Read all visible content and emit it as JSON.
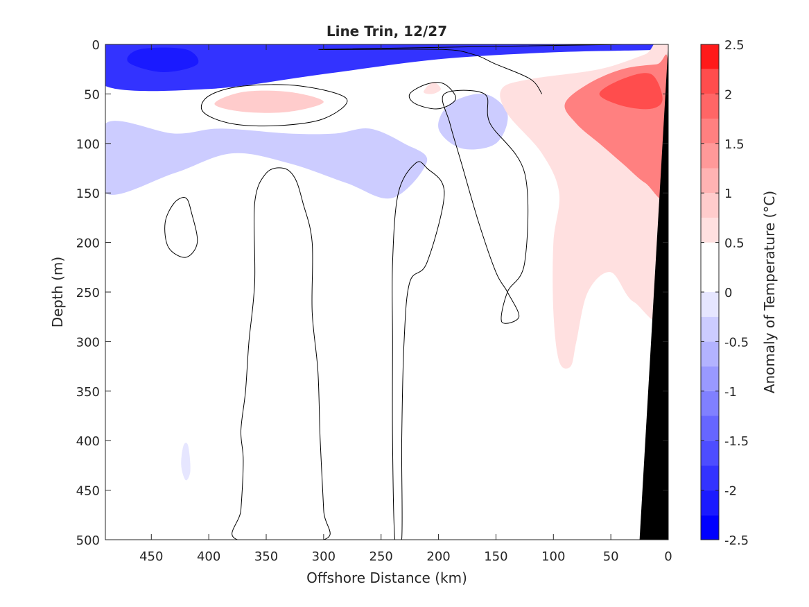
{
  "chart_data": {
    "type": "heatmap",
    "title": "Line Trin, 12/27",
    "xlabel": "Offshore Distance (km)",
    "ylabel": "Depth (m)",
    "colorbar_label": "Anomaly of Temperature (°C)",
    "xlim": [
      490,
      0
    ],
    "ylim": [
      0,
      500
    ],
    "x_reversed": true,
    "y_reversed": true,
    "x_ticks": [
      450,
      400,
      350,
      300,
      250,
      200,
      150,
      100,
      50,
      0
    ],
    "y_ticks": [
      0,
      50,
      100,
      150,
      200,
      250,
      300,
      350,
      400,
      450,
      500
    ],
    "colorbar": {
      "range": [
        -2.5,
        2.5
      ],
      "levels": [
        -2.5,
        -2.25,
        -2.0,
        -1.75,
        -1.5,
        -1.25,
        -1.0,
        -0.75,
        -0.5,
        -0.25,
        0.0,
        0.25,
        0.5,
        0.75,
        1.0,
        1.25,
        1.5,
        1.75,
        2.0,
        2.25,
        2.5
      ],
      "tick_values": [
        -2.5,
        -2,
        -1.5,
        -1,
        -0.5,
        0,
        0.5,
        1,
        1.5,
        2,
        2.5
      ],
      "tick_labels": [
        "-2.5",
        "-2",
        "-1.5",
        "-1",
        "-0.5",
        "0",
        "0.5",
        "1",
        "1.5",
        "2",
        "2.5"
      ],
      "colors": [
        "#0000ff",
        "#1a1aff",
        "#3333ff",
        "#4d4dff",
        "#6666ff",
        "#8080ff",
        "#9999ff",
        "#b3b3ff",
        "#ccccff",
        "#e6e6ff",
        "#ffffff",
        "#ffffff",
        "#ffe0e0",
        "#ffcccc",
        "#ffb3b3",
        "#ff9999",
        "#ff8080",
        "#ff6666",
        "#ff4d4d",
        "#ff1a1a"
      ]
    },
    "anomaly_fields": [
      {
        "feature": "surface cold layer",
        "value": -2.0,
        "points": [
          [
            490,
            0
          ],
          [
            0,
            0
          ],
          [
            0,
            5
          ],
          [
            100,
            8
          ],
          [
            200,
            15
          ],
          [
            300,
            30
          ],
          [
            400,
            45
          ],
          [
            490,
            42
          ]
        ]
      },
      {
        "feature": "surface core",
        "value": -2.25,
        "points": [
          [
            460,
            5
          ],
          [
            420,
            5
          ],
          [
            410,
            20
          ],
          [
            440,
            28
          ],
          [
            470,
            18
          ]
        ]
      },
      {
        "feature": "subsurface cold band",
        "value": -0.5,
        "points": [
          [
            490,
            80
          ],
          [
            430,
            90
          ],
          [
            390,
            85
          ],
          [
            330,
            90
          ],
          [
            290,
            90
          ],
          [
            260,
            85
          ],
          [
            230,
            100
          ],
          [
            210,
            118
          ],
          [
            240,
            155
          ],
          [
            280,
            140
          ],
          [
            330,
            120
          ],
          [
            380,
            110
          ],
          [
            430,
            130
          ],
          [
            490,
            150
          ]
        ]
      },
      {
        "feature": "cold lens near 170 km",
        "value": -0.5,
        "points": [
          [
            190,
            60
          ],
          [
            160,
            50
          ],
          [
            140,
            70
          ],
          [
            150,
            100
          ],
          [
            180,
            105
          ],
          [
            200,
            85
          ]
        ]
      },
      {
        "feature": "cold patch at depth",
        "value": -0.25,
        "points": [
          [
            422,
            405
          ],
          [
            418,
            405
          ],
          [
            416,
            430
          ],
          [
            420,
            440
          ],
          [
            424,
            425
          ]
        ]
      },
      {
        "feature": "warm lens near 350 km",
        "value": 0.75,
        "points": [
          [
            395,
            60
          ],
          [
            370,
            48
          ],
          [
            330,
            48
          ],
          [
            300,
            58
          ],
          [
            330,
            68
          ],
          [
            370,
            68
          ]
        ]
      },
      {
        "feature": "warm patch near 205 km",
        "value": 0.5,
        "points": [
          [
            213,
            48
          ],
          [
            205,
            38
          ],
          [
            198,
            45
          ],
          [
            205,
            50
          ]
        ]
      },
      {
        "feature": "nearshore warm plume",
        "value": 0.5,
        "points": [
          [
            145,
            45
          ],
          [
            120,
            35
          ],
          [
            60,
            25
          ],
          [
            20,
            10
          ],
          [
            0,
            0
          ],
          [
            0,
            260
          ],
          [
            30,
            260
          ],
          [
            50,
            230
          ],
          [
            70,
            250
          ],
          [
            80,
            300
          ],
          [
            85,
            325
          ],
          [
            95,
            320
          ],
          [
            100,
            270
          ],
          [
            100,
            200
          ],
          [
            95,
            150
          ],
          [
            110,
            110
          ],
          [
            140,
            70
          ]
        ]
      },
      {
        "feature": "nearshore warm core",
        "value": 1.5,
        "points": [
          [
            90,
            60
          ],
          [
            70,
            40
          ],
          [
            40,
            25
          ],
          [
            10,
            20
          ],
          [
            0,
            20
          ],
          [
            0,
            150
          ],
          [
            20,
            140
          ],
          [
            40,
            120
          ],
          [
            60,
            100
          ],
          [
            80,
            80
          ]
        ]
      },
      {
        "feature": "nearshore peak",
        "value": 2.0,
        "points": [
          [
            60,
            50
          ],
          [
            40,
            35
          ],
          [
            15,
            30
          ],
          [
            5,
            55
          ],
          [
            15,
            65
          ],
          [
            40,
            62
          ]
        ]
      }
    ],
    "zero_contours": [
      [
        [
          420,
          155
        ],
        [
          430,
          160
        ],
        [
          438,
          180
        ],
        [
          435,
          205
        ],
        [
          420,
          215
        ],
        [
          410,
          200
        ],
        [
          415,
          170
        ]
      ],
      [
        [
          335,
          125
        ],
        [
          350,
          130
        ],
        [
          360,
          160
        ],
        [
          360,
          240
        ],
        [
          365,
          300
        ],
        [
          368,
          350
        ],
        [
          372,
          390
        ],
        [
          370,
          420
        ],
        [
          372,
          470
        ],
        [
          375,
          500
        ],
        [
          300,
          500
        ],
        [
          300,
          470
        ],
        [
          303,
          400
        ],
        [
          305,
          330
        ],
        [
          310,
          270
        ],
        [
          310,
          200
        ],
        [
          318,
          160
        ],
        [
          325,
          135
        ]
      ],
      [
        [
          210,
          125
        ],
        [
          220,
          120
        ],
        [
          235,
          150
        ],
        [
          240,
          220
        ],
        [
          240,
          300
        ],
        [
          240,
          400
        ],
        [
          238,
          500
        ],
        [
          232,
          500
        ],
        [
          232,
          400
        ],
        [
          230,
          300
        ],
        [
          225,
          240
        ],
        [
          210,
          220
        ],
        [
          195,
          150
        ]
      ],
      [
        [
          160,
          50
        ],
        [
          155,
          80
        ],
        [
          125,
          130
        ],
        [
          125,
          220
        ],
        [
          140,
          250
        ],
        [
          145,
          280
        ],
        [
          130,
          275
        ],
        [
          140,
          250
        ],
        [
          150,
          230
        ],
        [
          165,
          180
        ],
        [
          180,
          120
        ],
        [
          190,
          80
        ],
        [
          195,
          50
        ]
      ],
      [
        [
          400,
          52
        ],
        [
          370,
          42
        ],
        [
          320,
          42
        ],
        [
          280,
          55
        ],
        [
          300,
          75
        ],
        [
          340,
          82
        ],
        [
          380,
          80
        ],
        [
          405,
          68
        ]
      ],
      [
        [
          225,
          50
        ],
        [
          210,
          40
        ],
        [
          195,
          40
        ],
        [
          185,
          55
        ],
        [
          200,
          65
        ],
        [
          220,
          60
        ]
      ],
      [
        [
          110,
          50
        ],
        [
          120,
          35
        ],
        [
          150,
          20
        ],
        [
          170,
          10
        ],
        [
          200,
          5
        ],
        [
          300,
          5
        ],
        [
          40,
          0
        ],
        [
          20,
          0
        ]
      ]
    ],
    "bathymetry": [
      [
        0,
        0
      ],
      [
        25,
        500
      ],
      [
        0,
        500
      ]
    ]
  }
}
